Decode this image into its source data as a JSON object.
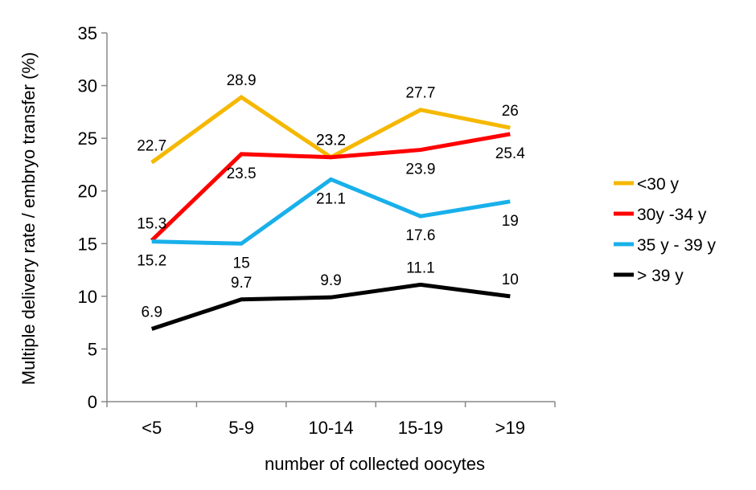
{
  "chart_data": {
    "type": "line",
    "xlabel": "number of collected oocytes",
    "ylabel": "Multiple delivery rate / embryo transfer (%)",
    "categories": [
      "<5",
      "5-9",
      "10-14",
      "15-19",
      ">19"
    ],
    "ylim": [
      0,
      35
    ],
    "yticks": [
      "0",
      "5",
      "10",
      "15",
      "20",
      "25",
      "30",
      "35"
    ],
    "grid": false,
    "legend_position": "right",
    "series": [
      {
        "name": "<30 y",
        "color": "#F5B800",
        "values": [
          22.7,
          28.9,
          23.2,
          27.7,
          26
        ],
        "labels": [
          "22.7",
          "28.9",
          "23.2",
          "27.7",
          "26"
        ]
      },
      {
        "name": "30y -34 y",
        "color": "#FF0000",
        "values": [
          15.3,
          23.5,
          23.2,
          23.9,
          25.4
        ],
        "labels": [
          "15.3",
          "23.5",
          "23.2",
          "23.9",
          "25.4"
        ]
      },
      {
        "name": "35 y - 39 y",
        "color": "#19B0EA",
        "values": [
          15.2,
          15,
          21.1,
          17.6,
          19
        ],
        "labels": [
          "15.2",
          "15",
          "21.1",
          "17.6",
          "19"
        ]
      },
      {
        "name": "> 39 y",
        "color": "#000000",
        "values": [
          6.9,
          9.7,
          9.9,
          11.1,
          10
        ],
        "labels": [
          "6.9",
          "9.7",
          "9.9",
          "11.1",
          "10"
        ]
      }
    ]
  }
}
